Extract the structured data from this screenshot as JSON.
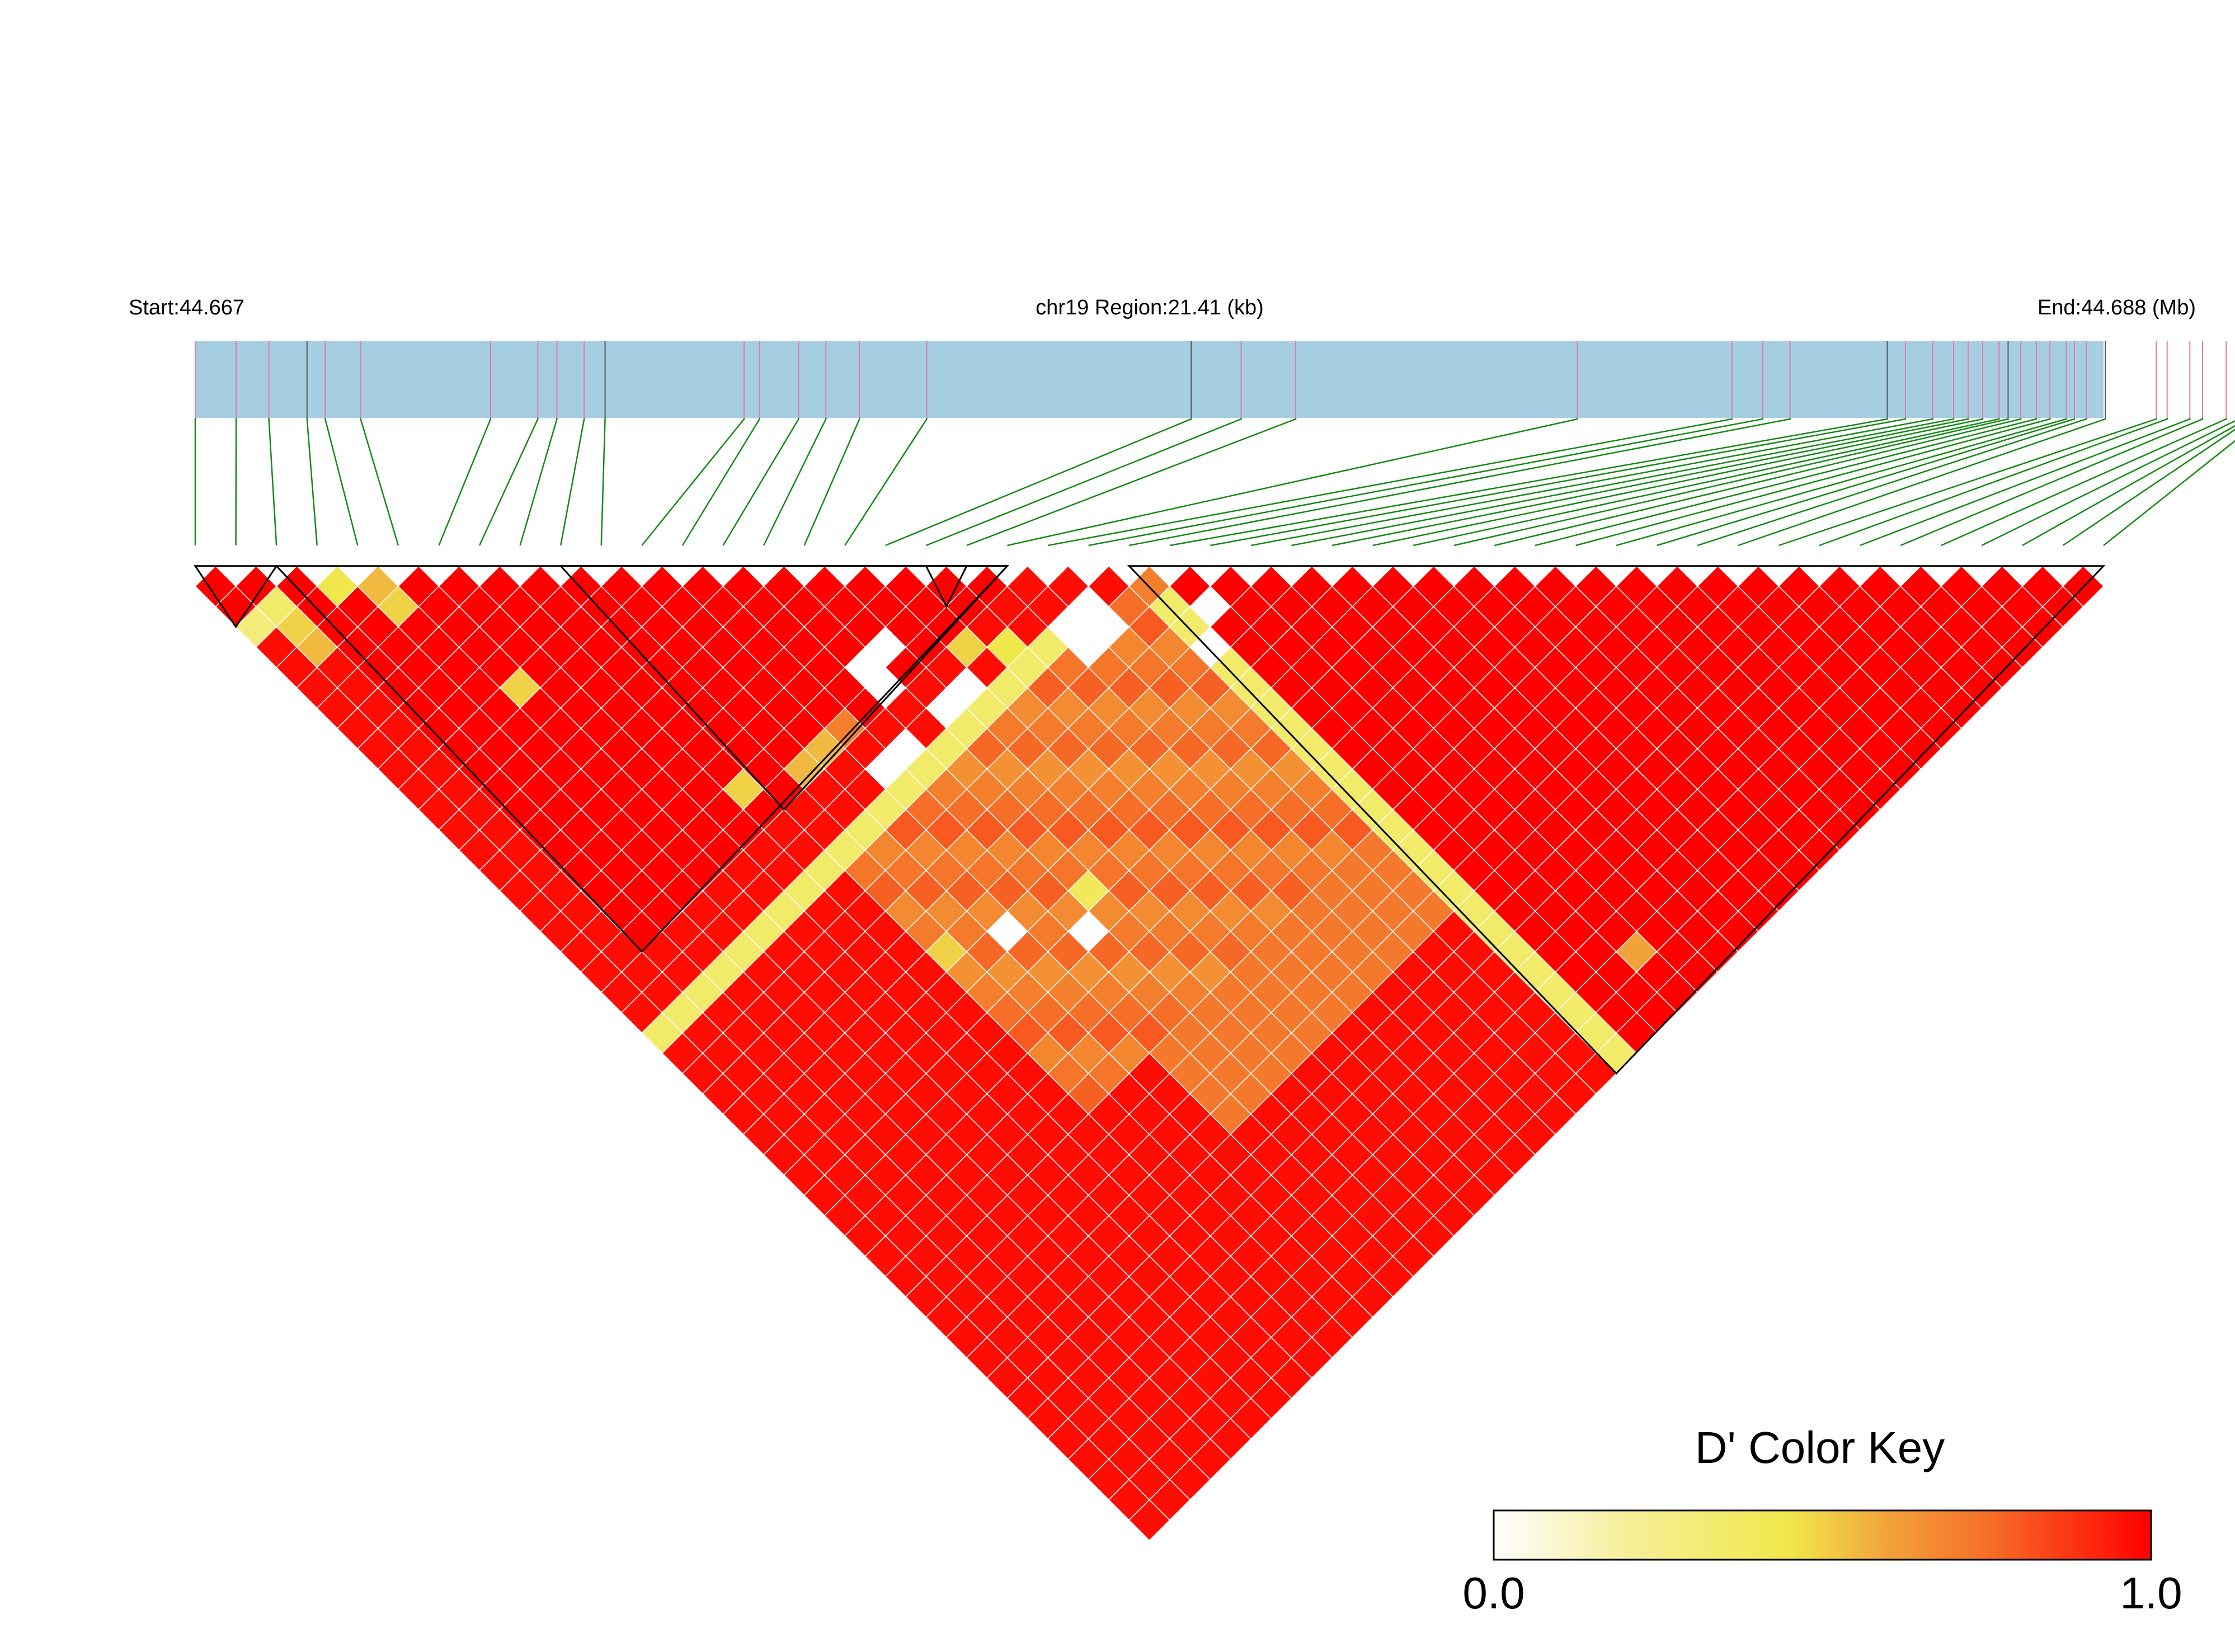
{
  "header": {
    "start_label": "Start:44.667",
    "region_label": "chr19 Region:21.41 (kb)",
    "end_label": "End:44.688 (Mb)"
  },
  "legend": {
    "title": "D' Color Key",
    "min_label": "0.0",
    "max_label": "1.0"
  },
  "colors": {
    "gene_track": "#a6cee3",
    "snp_tick": "#e07aa8",
    "snp_tick_alt": "#555555",
    "connector": "#138a13",
    "block_outline": "#000000",
    "cell_border": "#ffffff",
    "scale": [
      "#ffffff",
      "#f6ef9a",
      "#f0e84a",
      "#f2a23a",
      "#f56f28",
      "#ff0000"
    ]
  },
  "chart_data": {
    "type": "heatmap",
    "orientation": "LD triangle (pairwise D')",
    "chromosome": "chr19",
    "start_mb": 44.667,
    "end_mb": 44.688,
    "region_kb": 21.41,
    "snp_count": 48,
    "snp_positions_mb": [
      44.667,
      44.66745,
      44.66781,
      44.66823,
      44.66843,
      44.66882,
      44.67025,
      44.67077,
      44.67098,
      44.67128,
      44.67151,
      44.67304,
      44.67321,
      44.67364,
      44.67394,
      44.67431,
      44.67505,
      44.67796,
      44.67851,
      44.67911,
      44.68221,
      44.68391,
      44.68425,
      44.68455,
      44.68562,
      44.68582,
      44.68612,
      44.68635,
      44.68651,
      44.68667,
      44.68685,
      44.68695,
      44.68709,
      44.68726,
      44.68741,
      44.68759,
      44.68768,
      44.68781,
      44.68802,
      44.68858,
      44.68895,
      44.68909,
      44.68935,
      44.68949,
      44.68958,
      44.68962,
      44.68975,
      44.6887
    ],
    "value_scale": {
      "min": 0.0,
      "max": 1.0,
      "label": "D'"
    },
    "blocks": [
      {
        "from_snp": 1,
        "to_snp": 3
      },
      {
        "from_snp": 3,
        "to_snp": 21
      },
      {
        "from_snp": 10,
        "to_snp": 21
      },
      {
        "from_snp": 19,
        "to_snp": 20
      },
      {
        "from_snp": 24,
        "to_snp": 48
      }
    ],
    "dprime_rules": {
      "default": 0.97,
      "high_ld_block_value": 1.0,
      "mid_region_rows": {
        "from_snp": 13,
        "to_snp": 24,
        "value": 0.72
      },
      "low_stripe_column": {
        "snp": 24,
        "value": 0.35
      },
      "special_pairs": [
        {
          "i": 4,
          "j": 5,
          "v": 0.45
        },
        {
          "i": 5,
          "j": 6,
          "v": 0.55
        },
        {
          "i": 5,
          "j": 7,
          "v": 0.5
        },
        {
          "i": 2,
          "j": 4,
          "v": 0.35
        },
        {
          "i": 2,
          "j": 5,
          "v": 0.5
        },
        {
          "i": 2,
          "j": 6,
          "v": 0.55
        },
        {
          "i": 6,
          "j": 12,
          "v": 0.5
        },
        {
          "i": 9,
          "j": 20,
          "v": 0.5
        },
        {
          "i": 11,
          "j": 21,
          "v": 0.55
        },
        {
          "i": 12,
          "j": 21,
          "v": 0.55
        },
        {
          "i": 13,
          "j": 21,
          "v": 0.7
        },
        {
          "i": 15,
          "j": 20,
          "v": 0.0
        },
        {
          "i": 16,
          "j": 20,
          "v": 0.0
        },
        {
          "i": 15,
          "j": 21,
          "v": 0.0
        },
        {
          "i": 13,
          "j": 23,
          "v": 0.0
        },
        {
          "i": 14,
          "j": 23,
          "v": 0.0
        },
        {
          "i": 16,
          "j": 23,
          "v": 0.0
        },
        {
          "i": 17,
          "j": 23,
          "v": 0.0
        },
        {
          "i": 18,
          "j": 22,
          "v": 0.5
        },
        {
          "i": 19,
          "j": 23,
          "v": 0.45
        },
        {
          "i": 21,
          "j": 25,
          "v": 0.0
        },
        {
          "i": 22,
          "j": 24,
          "v": 0.0
        },
        {
          "i": 22,
          "j": 25,
          "v": 0.0
        },
        {
          "i": 21,
          "j": 24,
          "v": 0.0
        },
        {
          "i": 10,
          "j": 29,
          "v": 0.5
        },
        {
          "i": 12,
          "j": 30,
          "v": 0.0
        },
        {
          "i": 14,
          "j": 32,
          "v": 0.0
        },
        {
          "i": 15,
          "j": 31,
          "v": 0.4
        },
        {
          "i": 1,
          "j": 4,
          "v": 0.3
        },
        {
          "i": 27,
          "j": 46,
          "v": 0.6
        },
        {
          "i": 24,
          "j": 28,
          "v": 0.0
        },
        {
          "i": 25,
          "j": 27,
          "v": 0.0
        }
      ]
    }
  }
}
